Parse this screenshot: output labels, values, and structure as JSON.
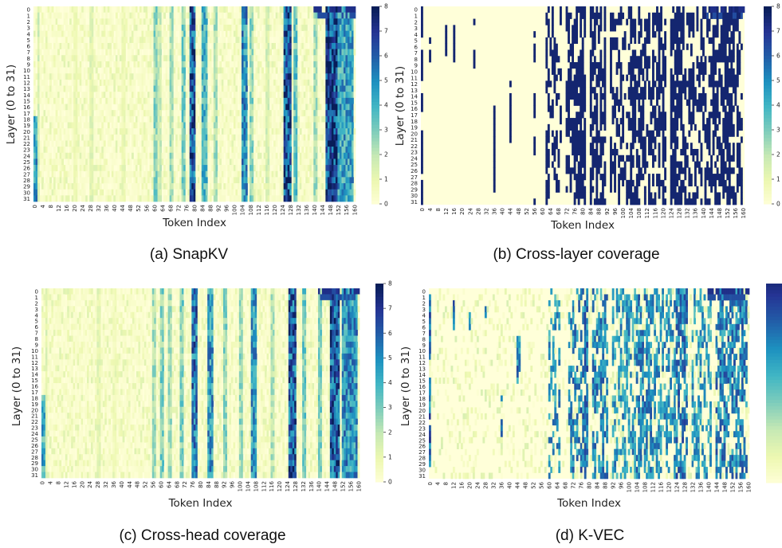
{
  "chart_data": [
    {
      "type": "heatmap",
      "caption": "(a) SnapKV",
      "xlabel": "Token Index",
      "ylabel": "Layer (0 to 31)",
      "rows": 32,
      "cols": 161,
      "y_tick_labels": [
        "0",
        "1",
        "2",
        "3",
        "4",
        "5",
        "6",
        "7",
        "8",
        "9",
        "10",
        "11",
        "12",
        "13",
        "14",
        "15",
        "16",
        "17",
        "18",
        "19",
        "20",
        "21",
        "22",
        "23",
        "24",
        "25",
        "26",
        "27",
        "28",
        "29",
        "30",
        "31"
      ],
      "x_tick_labels": [
        "0",
        "4",
        "8",
        "12",
        "16",
        "20",
        "24",
        "28",
        "32",
        "36",
        "40",
        "44",
        "48",
        "52",
        "56",
        "60",
        "64",
        "68",
        "72",
        "76",
        "80",
        "84",
        "88",
        "92",
        "96",
        "100",
        "104",
        "108",
        "112",
        "116",
        "120",
        "124",
        "128",
        "132",
        "136",
        "140",
        "144",
        "148",
        "152",
        "156",
        "160"
      ],
      "x_tick_step": 4,
      "colorbar": {
        "min": 0,
        "max": 8,
        "ticks": [
          "0",
          "1",
          "2",
          "3",
          "4",
          "5",
          "6",
          "7",
          "8"
        ]
      },
      "colormap": "YlGnBu",
      "pattern": "smooth",
      "columns": [
        {
          "x": 2,
          "w": 1,
          "v": 1.6,
          "rows": [
            0,
            31
          ]
        },
        {
          "x": 0,
          "w": 2,
          "v": 4.5,
          "rows": [
            18,
            31
          ]
        },
        {
          "x": 20,
          "w": 2,
          "v": 0.9,
          "rows": [
            0,
            31
          ]
        },
        {
          "x": 28,
          "w": 2,
          "v": 1.3,
          "rows": [
            0,
            31
          ]
        },
        {
          "x": 44,
          "w": 2,
          "v": 0.9,
          "rows": [
            0,
            31
          ]
        },
        {
          "x": 60,
          "w": 2,
          "v": 2.8,
          "rows": [
            0,
            31
          ]
        },
        {
          "x": 62,
          "w": 2,
          "v": 1.8,
          "rows": [
            0,
            31
          ]
        },
        {
          "x": 68,
          "w": 2,
          "v": 2.4,
          "rows": [
            0,
            31
          ]
        },
        {
          "x": 74,
          "w": 2,
          "v": 3.0,
          "rows": [
            0,
            31
          ]
        },
        {
          "x": 78,
          "w": 3,
          "v": 6.2,
          "rows": [
            0,
            31
          ]
        },
        {
          "x": 84,
          "w": 3,
          "v": 4.0,
          "rows": [
            0,
            31
          ]
        },
        {
          "x": 90,
          "w": 2,
          "v": 2.4,
          "rows": [
            0,
            31
          ]
        },
        {
          "x": 104,
          "w": 3,
          "v": 4.8,
          "rows": [
            0,
            31
          ]
        },
        {
          "x": 108,
          "w": 2,
          "v": 2.8,
          "rows": [
            0,
            31
          ]
        },
        {
          "x": 116,
          "w": 2,
          "v": 1.6,
          "rows": [
            0,
            31
          ]
        },
        {
          "x": 125,
          "w": 4,
          "v": 6.4,
          "rows": [
            0,
            31
          ]
        },
        {
          "x": 130,
          "w": 2,
          "v": 3.4,
          "rows": [
            0,
            31
          ]
        },
        {
          "x": 140,
          "w": 2,
          "v": 2.4,
          "rows": [
            0,
            31
          ]
        },
        {
          "x": 146,
          "w": 6,
          "v": 6.8,
          "rows": [
            0,
            31
          ]
        },
        {
          "x": 152,
          "w": 8,
          "v": 4.4,
          "rows": [
            0,
            31
          ]
        }
      ]
    },
    {
      "type": "heatmap",
      "caption": "(b) Cross-layer coverage",
      "xlabel": "Token Index",
      "ylabel": "Layer (0 to 31)",
      "rows": 32,
      "cols": 161,
      "y_tick_labels": [
        "0",
        "1",
        "2",
        "3",
        "4",
        "5",
        "6",
        "7",
        "8",
        "9",
        "10",
        "11",
        "12",
        "13",
        "14",
        "15",
        "16",
        "17",
        "18",
        "19",
        "20",
        "21",
        "22",
        "23",
        "24",
        "25",
        "26",
        "27",
        "28",
        "29",
        "30",
        "31"
      ],
      "x_tick_labels": [
        "0",
        "4",
        "8",
        "12",
        "16",
        "20",
        "24",
        "28",
        "32",
        "36",
        "40",
        "44",
        "48",
        "52",
        "56",
        "60",
        "64",
        "68",
        "72",
        "76",
        "80",
        "84",
        "88",
        "92",
        "96",
        "100",
        "104",
        "108",
        "112",
        "116",
        "120",
        "124",
        "128",
        "132",
        "136",
        "140",
        "144",
        "148",
        "152",
        "156",
        "160"
      ],
      "x_tick_step": 4,
      "colorbar": {
        "min": 0,
        "max": 8,
        "ticks": [
          "0",
          "1",
          "2",
          "3",
          "4",
          "5",
          "6",
          "7",
          "8"
        ]
      },
      "colormap": "YlGnBu",
      "pattern": "binary",
      "columns": [
        {
          "x": 0,
          "w": 1,
          "v": 7.6,
          "rows": [
            0,
            31
          ],
          "p": 0.45
        },
        {
          "x": 4,
          "w": 1,
          "v": 7.6,
          "rows": [
            3,
            8
          ],
          "p": 0.5
        },
        {
          "x": 12,
          "w": 1,
          "v": 7.6,
          "rows": [
            2,
            7
          ],
          "p": 0.5
        },
        {
          "x": 16,
          "w": 1,
          "v": 7.6,
          "rows": [
            2,
            8
          ],
          "p": 0.5
        },
        {
          "x": 26,
          "w": 1,
          "v": 7.6,
          "rows": [
            0,
            8
          ],
          "p": 0.4
        },
        {
          "x": 36,
          "w": 1,
          "v": 7.6,
          "rows": [
            16,
            28
          ],
          "p": 0.5
        },
        {
          "x": 44,
          "w": 1,
          "v": 7.6,
          "rows": [
            10,
            20
          ],
          "p": 0.6
        },
        {
          "x": 56,
          "w": 1,
          "v": 7.6,
          "rows": [
            0,
            31
          ],
          "p": 0.2
        },
        {
          "x": 62,
          "w": 8,
          "v": 7.6,
          "rows": [
            0,
            31
          ],
          "p": 0.26
        },
        {
          "x": 72,
          "w": 6,
          "v": 7.6,
          "rows": [
            0,
            31
          ],
          "p": 0.32
        },
        {
          "x": 78,
          "w": 4,
          "v": 7.6,
          "rows": [
            0,
            31
          ],
          "p": 0.5
        },
        {
          "x": 84,
          "w": 8,
          "v": 7.6,
          "rows": [
            0,
            31
          ],
          "p": 0.4
        },
        {
          "x": 94,
          "w": 10,
          "v": 7.6,
          "rows": [
            0,
            31
          ],
          "p": 0.28
        },
        {
          "x": 104,
          "w": 8,
          "v": 7.6,
          "rows": [
            0,
            31
          ],
          "p": 0.45
        },
        {
          "x": 112,
          "w": 10,
          "v": 7.6,
          "rows": [
            0,
            31
          ],
          "p": 0.3
        },
        {
          "x": 124,
          "w": 6,
          "v": 7.6,
          "rows": [
            0,
            31
          ],
          "p": 0.55
        },
        {
          "x": 130,
          "w": 12,
          "v": 7.6,
          "rows": [
            0,
            31
          ],
          "p": 0.3
        },
        {
          "x": 142,
          "w": 18,
          "v": 7.6,
          "rows": [
            0,
            31
          ],
          "p": 0.42
        }
      ]
    },
    {
      "type": "heatmap",
      "caption": "(c) Cross-head coverage",
      "xlabel": "Token Index",
      "ylabel": "Layer (0 to 31)",
      "rows": 32,
      "cols": 161,
      "y_tick_labels": [
        "0",
        "1",
        "2",
        "3",
        "4",
        "5",
        "6",
        "7",
        "8",
        "9",
        "10",
        "11",
        "12",
        "13",
        "14",
        "15",
        "16",
        "17",
        "18",
        "19",
        "20",
        "21",
        "22",
        "23",
        "24",
        "25",
        "26",
        "27",
        "28",
        "29",
        "30",
        "31"
      ],
      "x_tick_labels": [
        "0",
        "4",
        "8",
        "12",
        "16",
        "20",
        "24",
        "28",
        "32",
        "36",
        "40",
        "44",
        "48",
        "52",
        "56",
        "60",
        "64",
        "68",
        "72",
        "76",
        "80",
        "84",
        "88",
        "92",
        "96",
        "100",
        "104",
        "108",
        "112",
        "116",
        "120",
        "124",
        "128",
        "132",
        "136",
        "140",
        "144",
        "148",
        "152",
        "156",
        "160"
      ],
      "x_tick_step": 4,
      "colorbar": {
        "min": 0,
        "max": 8,
        "ticks": [
          "0",
          "1",
          "2",
          "3",
          "4",
          "5",
          "6",
          "7",
          "8"
        ]
      },
      "colormap": "YlGnBu",
      "pattern": "smooth",
      "columns": [
        {
          "x": 0,
          "w": 2,
          "v": 4.2,
          "rows": [
            18,
            31
          ]
        },
        {
          "x": 2,
          "w": 1,
          "v": 1.4,
          "rows": [
            0,
            31
          ]
        },
        {
          "x": 28,
          "w": 2,
          "v": 1.2,
          "rows": [
            0,
            31
          ]
        },
        {
          "x": 36,
          "w": 2,
          "v": 0.7,
          "rows": [
            0,
            31
          ]
        },
        {
          "x": 56,
          "w": 2,
          "v": 2.4,
          "rows": [
            0,
            31
          ]
        },
        {
          "x": 60,
          "w": 2,
          "v": 3.0,
          "rows": [
            0,
            31
          ]
        },
        {
          "x": 64,
          "w": 2,
          "v": 2.4,
          "rows": [
            0,
            31
          ]
        },
        {
          "x": 70,
          "w": 2,
          "v": 3.0,
          "rows": [
            0,
            31
          ]
        },
        {
          "x": 76,
          "w": 3,
          "v": 5.6,
          "rows": [
            0,
            31
          ]
        },
        {
          "x": 84,
          "w": 3,
          "v": 4.6,
          "rows": [
            0,
            31
          ]
        },
        {
          "x": 92,
          "w": 2,
          "v": 2.8,
          "rows": [
            0,
            31
          ]
        },
        {
          "x": 100,
          "w": 2,
          "v": 2.6,
          "rows": [
            0,
            31
          ]
        },
        {
          "x": 106,
          "w": 3,
          "v": 4.6,
          "rows": [
            0,
            31
          ]
        },
        {
          "x": 116,
          "w": 2,
          "v": 2.2,
          "rows": [
            0,
            31
          ]
        },
        {
          "x": 125,
          "w": 4,
          "v": 6.0,
          "rows": [
            0,
            31
          ]
        },
        {
          "x": 132,
          "w": 2,
          "v": 3.2,
          "rows": [
            0,
            31
          ]
        },
        {
          "x": 140,
          "w": 2,
          "v": 3.0,
          "rows": [
            0,
            31
          ]
        },
        {
          "x": 146,
          "w": 5,
          "v": 6.2,
          "rows": [
            0,
            31
          ]
        },
        {
          "x": 152,
          "w": 8,
          "v": 4.8,
          "rows": [
            0,
            31
          ]
        }
      ]
    },
    {
      "type": "heatmap",
      "caption": "(d) K-VEC",
      "xlabel": "Token Index",
      "ylabel": "Layer (0 to 31)",
      "rows": 32,
      "cols": 161,
      "y_tick_labels": [
        "0",
        "1",
        "2",
        "3",
        "4",
        "5",
        "6",
        "7",
        "8",
        "9",
        "10",
        "11",
        "12",
        "13",
        "14",
        "15",
        "16",
        "17",
        "18",
        "19",
        "20",
        "21",
        "22",
        "23",
        "24",
        "25",
        "26",
        "27",
        "28",
        "29",
        "30",
        "31"
      ],
      "x_tick_labels": [
        "0",
        "4",
        "8",
        "12",
        "16",
        "20",
        "24",
        "28",
        "32",
        "36",
        "40",
        "44",
        "48",
        "52",
        "56",
        "60",
        "64",
        "68",
        "72",
        "76",
        "80",
        "84",
        "88",
        "92",
        "96",
        "100",
        "104",
        "108",
        "112",
        "116",
        "120",
        "124",
        "128",
        "132",
        "136",
        "140",
        "144",
        "148",
        "152",
        "156",
        "160"
      ],
      "x_tick_step": 4,
      "colorbar": {
        "min": 0,
        "max": 8,
        "ticks": []
      },
      "colormap": "YlGnBu",
      "pattern": "mixed",
      "columns": [
        {
          "x": 0,
          "w": 1,
          "v": 7.2,
          "rows": [
            0,
            31
          ],
          "p": 0.5
        },
        {
          "x": 12,
          "w": 1,
          "v": 6.8,
          "rows": [
            2,
            6
          ],
          "p": 0.5
        },
        {
          "x": 20,
          "w": 1,
          "v": 6.8,
          "rows": [
            3,
            7
          ],
          "p": 0.5
        },
        {
          "x": 28,
          "w": 1,
          "v": 6.8,
          "rows": [
            0,
            6
          ],
          "p": 0.4
        },
        {
          "x": 36,
          "w": 1,
          "v": 6.8,
          "rows": [
            14,
            24
          ],
          "p": 0.55
        },
        {
          "x": 44,
          "w": 2,
          "v": 6.8,
          "rows": [
            8,
            14
          ],
          "p": 0.55
        },
        {
          "x": 60,
          "w": 6,
          "v": 6.0,
          "rows": [
            0,
            31
          ],
          "p": 0.25
        },
        {
          "x": 70,
          "w": 6,
          "v": 6.4,
          "rows": [
            0,
            31
          ],
          "p": 0.32
        },
        {
          "x": 76,
          "w": 4,
          "v": 6.8,
          "rows": [
            0,
            31
          ],
          "p": 0.5
        },
        {
          "x": 82,
          "w": 8,
          "v": 6.4,
          "rows": [
            0,
            31
          ],
          "p": 0.4
        },
        {
          "x": 92,
          "w": 12,
          "v": 6.0,
          "rows": [
            0,
            31
          ],
          "p": 0.3
        },
        {
          "x": 104,
          "w": 8,
          "v": 6.4,
          "rows": [
            0,
            31
          ],
          "p": 0.45
        },
        {
          "x": 112,
          "w": 12,
          "v": 6.0,
          "rows": [
            0,
            31
          ],
          "p": 0.32
        },
        {
          "x": 124,
          "w": 6,
          "v": 6.8,
          "rows": [
            0,
            31
          ],
          "p": 0.5
        },
        {
          "x": 132,
          "w": 10,
          "v": 5.8,
          "rows": [
            0,
            31
          ],
          "p": 0.3
        },
        {
          "x": 144,
          "w": 16,
          "v": 6.6,
          "rows": [
            0,
            31
          ],
          "p": 0.45
        }
      ]
    }
  ]
}
